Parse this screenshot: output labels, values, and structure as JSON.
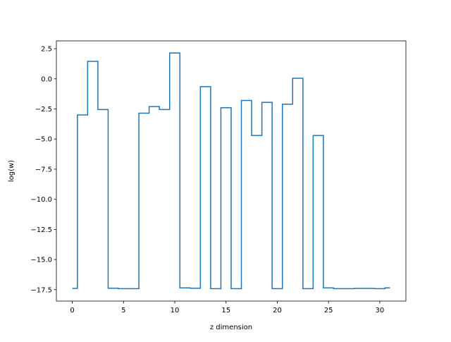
{
  "chart_data": {
    "type": "line",
    "drawstyle": "steps-mid",
    "xlabel": "z dimension",
    "ylabel": "log(w)",
    "xlim": [
      -1.55,
      32.55
    ],
    "ylim": [
      -18.45,
      3.15
    ],
    "xticks": [
      0,
      5,
      10,
      15,
      20,
      25,
      30
    ],
    "yticks": [
      -17.5,
      -15.0,
      -12.5,
      -10.0,
      -7.5,
      -5.0,
      -2.5,
      0.0,
      2.5
    ],
    "yticklabels": [
      "−17.5",
      "−15.0",
      "−12.5",
      "−10.0",
      "−7.5",
      "−5.0",
      "−2.5",
      "0.0",
      "2.5"
    ],
    "grid": false,
    "series": [
      {
        "color": "#1f77b4",
        "x": [
          0,
          1,
          2,
          3,
          4,
          5,
          6,
          7,
          8,
          9,
          10,
          11,
          12,
          13,
          14,
          15,
          16,
          17,
          18,
          19,
          20,
          21,
          22,
          23,
          24,
          25,
          26,
          27,
          28,
          29,
          30,
          31
        ],
        "y": [
          -17.4,
          -3.0,
          1.45,
          -2.55,
          -17.38,
          -17.42,
          -17.42,
          -2.85,
          -2.3,
          -2.55,
          2.15,
          -17.35,
          -17.38,
          -0.65,
          -17.42,
          -2.4,
          -17.42,
          -1.8,
          -4.7,
          -1.95,
          -17.42,
          -2.1,
          0.05,
          -17.42,
          -4.7,
          -17.35,
          -17.42,
          -17.42,
          -17.4,
          -17.4,
          -17.42,
          -17.35
        ]
      }
    ]
  }
}
